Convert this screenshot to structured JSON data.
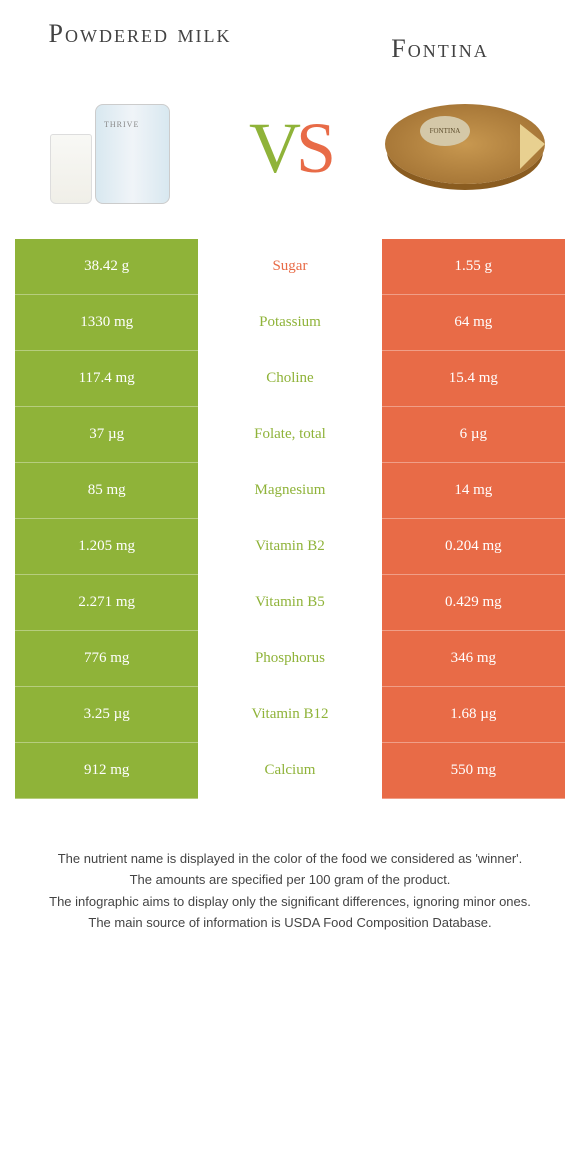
{
  "header": {
    "left_title": "Powdered milk",
    "right_title": "Fontina",
    "vs_v": "V",
    "vs_s": "S"
  },
  "colors": {
    "left_bg": "#8fb339",
    "right_bg": "#e86b47",
    "left_text": "#8fb339",
    "right_text": "#e86b47"
  },
  "rows": [
    {
      "left": "38.42 g",
      "label": "Sugar",
      "right": "1.55 g",
      "winner": "right"
    },
    {
      "left": "1330 mg",
      "label": "Potassium",
      "right": "64 mg",
      "winner": "left"
    },
    {
      "left": "117.4 mg",
      "label": "Choline",
      "right": "15.4 mg",
      "winner": "left"
    },
    {
      "left": "37 µg",
      "label": "Folate, total",
      "right": "6 µg",
      "winner": "left"
    },
    {
      "left": "85 mg",
      "label": "Magnesium",
      "right": "14 mg",
      "winner": "left"
    },
    {
      "left": "1.205 mg",
      "label": "Vitamin B2",
      "right": "0.204 mg",
      "winner": "left"
    },
    {
      "left": "2.271 mg",
      "label": "Vitamin B5",
      "right": "0.429 mg",
      "winner": "left"
    },
    {
      "left": "776 mg",
      "label": "Phosphorus",
      "right": "346 mg",
      "winner": "left"
    },
    {
      "left": "3.25 µg",
      "label": "Vitamin B12",
      "right": "1.68 µg",
      "winner": "left"
    },
    {
      "left": "912 mg",
      "label": "Calcium",
      "right": "550 mg",
      "winner": "left"
    }
  ],
  "footnotes": [
    "The nutrient name is displayed in the color of the food we considered as 'winner'.",
    "The amounts are specified per 100 gram of the product.",
    "The infographic aims to display only the significant differences, ignoring minor ones.",
    "The main source of information is USDA Food Composition Database."
  ]
}
